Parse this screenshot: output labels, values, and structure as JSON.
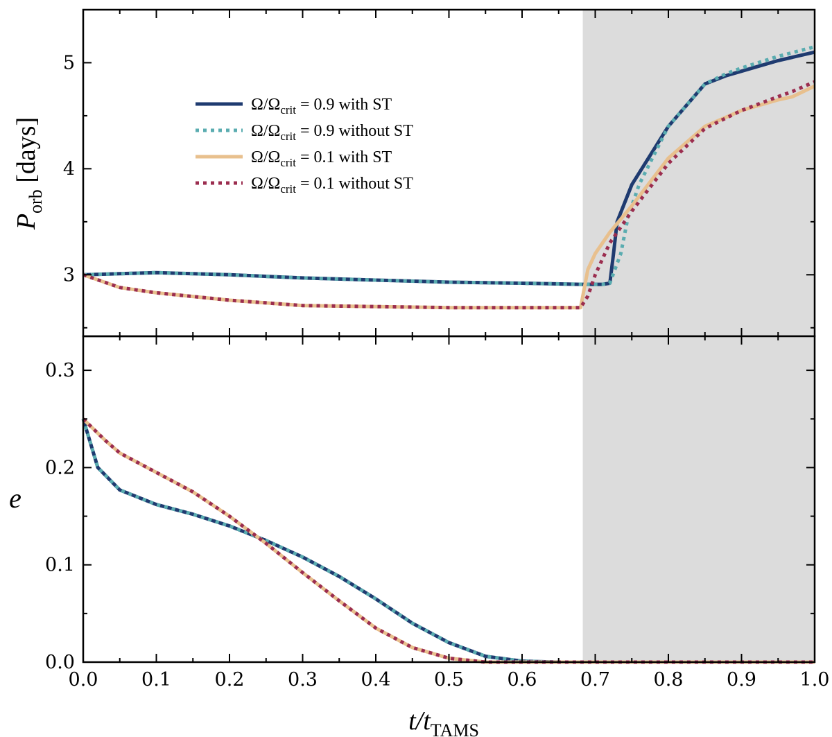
{
  "chart_data": [
    {
      "type": "line",
      "panel": "top",
      "ylabel_main": "P",
      "ylabel_sub": "orb",
      "ylabel_unit": " [days]",
      "xlim": [
        0.0,
        1.0
      ],
      "ylim": [
        2.42,
        5.5
      ],
      "yticks": [
        3,
        4,
        5
      ],
      "ytick_labels": [
        "3",
        "4",
        "5"
      ],
      "shaded_region": [
        0.683,
        1.0
      ],
      "series": [
        {
          "name": "Ω/Ωcrit = 0.9 with ST",
          "color": "#1f3b70",
          "style": "solid",
          "x": [
            0.0,
            0.05,
            0.1,
            0.15,
            0.2,
            0.3,
            0.4,
            0.5,
            0.6,
            0.68,
            0.71,
            0.72,
            0.725,
            0.73,
            0.75,
            0.8,
            0.85,
            0.88,
            0.9,
            0.95,
            1.0
          ],
          "y": [
            3.0,
            3.01,
            3.02,
            3.01,
            3.0,
            2.97,
            2.95,
            2.93,
            2.92,
            2.91,
            2.91,
            2.92,
            3.2,
            3.5,
            3.85,
            4.4,
            4.8,
            4.88,
            4.92,
            5.02,
            5.1
          ]
        },
        {
          "name": "Ω/Ωcrit = 0.9 without ST",
          "color": "#5aacb0",
          "style": "dotted",
          "x": [
            0.0,
            0.05,
            0.1,
            0.15,
            0.2,
            0.3,
            0.4,
            0.5,
            0.6,
            0.68,
            0.71,
            0.72,
            0.735,
            0.745,
            0.76,
            0.8,
            0.85,
            0.88,
            0.9,
            0.95,
            1.0
          ],
          "y": [
            3.0,
            3.01,
            3.02,
            3.01,
            3.0,
            2.97,
            2.95,
            2.93,
            2.92,
            2.91,
            2.91,
            2.92,
            3.2,
            3.55,
            3.85,
            4.4,
            4.8,
            4.9,
            4.95,
            5.06,
            5.15
          ]
        },
        {
          "name": "Ω/Ωcrit = 0.1 with ST",
          "color": "#e8c08e",
          "style": "solid",
          "x": [
            0.0,
            0.05,
            0.1,
            0.2,
            0.3,
            0.4,
            0.5,
            0.6,
            0.68,
            0.69,
            0.7,
            0.72,
            0.75,
            0.8,
            0.85,
            0.9,
            0.95,
            0.97,
            1.0
          ],
          "y": [
            3.0,
            2.88,
            2.83,
            2.76,
            2.71,
            2.7,
            2.69,
            2.69,
            2.69,
            3.05,
            3.2,
            3.4,
            3.65,
            4.1,
            4.4,
            4.55,
            4.65,
            4.68,
            4.78
          ]
        },
        {
          "name": "Ω/Ωcrit = 0.1 without ST",
          "color": "#9b2d4f",
          "style": "dotted",
          "x": [
            0.0,
            0.05,
            0.1,
            0.2,
            0.3,
            0.4,
            0.5,
            0.6,
            0.68,
            0.69,
            0.7,
            0.72,
            0.75,
            0.8,
            0.85,
            0.9,
            0.95,
            0.97,
            1.0
          ],
          "y": [
            3.0,
            2.88,
            2.83,
            2.76,
            2.71,
            2.7,
            2.69,
            2.69,
            2.69,
            2.8,
            3.0,
            3.3,
            3.6,
            4.05,
            4.38,
            4.55,
            4.68,
            4.73,
            4.82
          ]
        }
      ],
      "legend": [
        {
          "label_sym": "Ω/Ω",
          "label_sub": "crit",
          "label_rest": " = 0.9 with ST",
          "color": "#1f3b70",
          "style": "solid"
        },
        {
          "label_sym": "Ω/Ω",
          "label_sub": "crit",
          "label_rest": " = 0.9 without ST",
          "color": "#5aacb0",
          "style": "dotted"
        },
        {
          "label_sym": "Ω/Ω",
          "label_sub": "crit",
          "label_rest": " = 0.1 with ST",
          "color": "#e8c08e",
          "style": "solid"
        },
        {
          "label_sym": "Ω/Ω",
          "label_sub": "crit",
          "label_rest": " = 0.1 without ST",
          "color": "#9b2d4f",
          "style": "dotted"
        }
      ]
    },
    {
      "type": "line",
      "panel": "bottom",
      "ylabel": "e",
      "xlabel_main": "t",
      "xlabel_mid": "/t",
      "xlabel_sub": "TAMS",
      "xlim": [
        0.0,
        1.0
      ],
      "ylim": [
        0.0,
        0.335
      ],
      "xticks": [
        0.0,
        0.1,
        0.2,
        0.3,
        0.4,
        0.5,
        0.6,
        0.7,
        0.8,
        0.9,
        1.0
      ],
      "xtick_labels": [
        "0.0",
        "0.1",
        "0.2",
        "0.3",
        "0.4",
        "0.5",
        "0.6",
        "0.7",
        "0.8",
        "0.9",
        "1.0"
      ],
      "yticks": [
        0.0,
        0.1,
        0.2,
        0.3
      ],
      "ytick_labels": [
        "0.0",
        "0.1",
        "0.2",
        "0.3"
      ],
      "shaded_region": [
        0.683,
        1.0
      ],
      "series": [
        {
          "name": "Ω/Ωcrit = 0.9 with ST",
          "color": "#1f3b70",
          "style": "solid",
          "x": [
            0.0,
            0.02,
            0.05,
            0.08,
            0.1,
            0.15,
            0.2,
            0.25,
            0.3,
            0.35,
            0.4,
            0.45,
            0.5,
            0.55,
            0.6,
            0.65,
            0.7,
            0.8,
            0.9,
            1.0
          ],
          "y": [
            0.25,
            0.2,
            0.177,
            0.168,
            0.162,
            0.152,
            0.14,
            0.125,
            0.108,
            0.088,
            0.065,
            0.04,
            0.02,
            0.006,
            0.001,
            0.0,
            0.0,
            0.0,
            0.0,
            0.0
          ]
        },
        {
          "name": "Ω/Ωcrit = 0.9 without ST",
          "color": "#5aacb0",
          "style": "dotted",
          "x": [
            0.0,
            0.02,
            0.05,
            0.08,
            0.1,
            0.15,
            0.2,
            0.25,
            0.3,
            0.35,
            0.4,
            0.45,
            0.5,
            0.55,
            0.6,
            0.65,
            0.7,
            0.8,
            0.9,
            1.0
          ],
          "y": [
            0.25,
            0.2,
            0.177,
            0.168,
            0.162,
            0.152,
            0.14,
            0.125,
            0.108,
            0.088,
            0.065,
            0.04,
            0.02,
            0.006,
            0.001,
            0.0,
            0.0,
            0.0,
            0.0,
            0.0
          ]
        },
        {
          "name": "Ω/Ωcrit = 0.1 with ST",
          "color": "#e8c08e",
          "style": "solid",
          "x": [
            0.0,
            0.03,
            0.05,
            0.1,
            0.15,
            0.2,
            0.25,
            0.3,
            0.35,
            0.4,
            0.45,
            0.5,
            0.55,
            0.6,
            0.7,
            0.8,
            0.9,
            1.0
          ],
          "y": [
            0.25,
            0.228,
            0.215,
            0.195,
            0.175,
            0.15,
            0.122,
            0.092,
            0.063,
            0.035,
            0.015,
            0.004,
            0.0,
            0.0,
            0.0,
            0.0,
            0.0,
            0.0
          ]
        },
        {
          "name": "Ω/Ωcrit = 0.1 without ST",
          "color": "#9b2d4f",
          "style": "dotted",
          "x": [
            0.0,
            0.03,
            0.05,
            0.1,
            0.15,
            0.2,
            0.25,
            0.3,
            0.35,
            0.4,
            0.45,
            0.5,
            0.55,
            0.6,
            0.7,
            0.8,
            0.9,
            1.0
          ],
          "y": [
            0.25,
            0.228,
            0.215,
            0.195,
            0.175,
            0.15,
            0.122,
            0.092,
            0.063,
            0.035,
            0.015,
            0.004,
            0.0,
            0.0,
            0.0,
            0.0,
            0.0,
            0.0
          ]
        }
      ]
    }
  ]
}
